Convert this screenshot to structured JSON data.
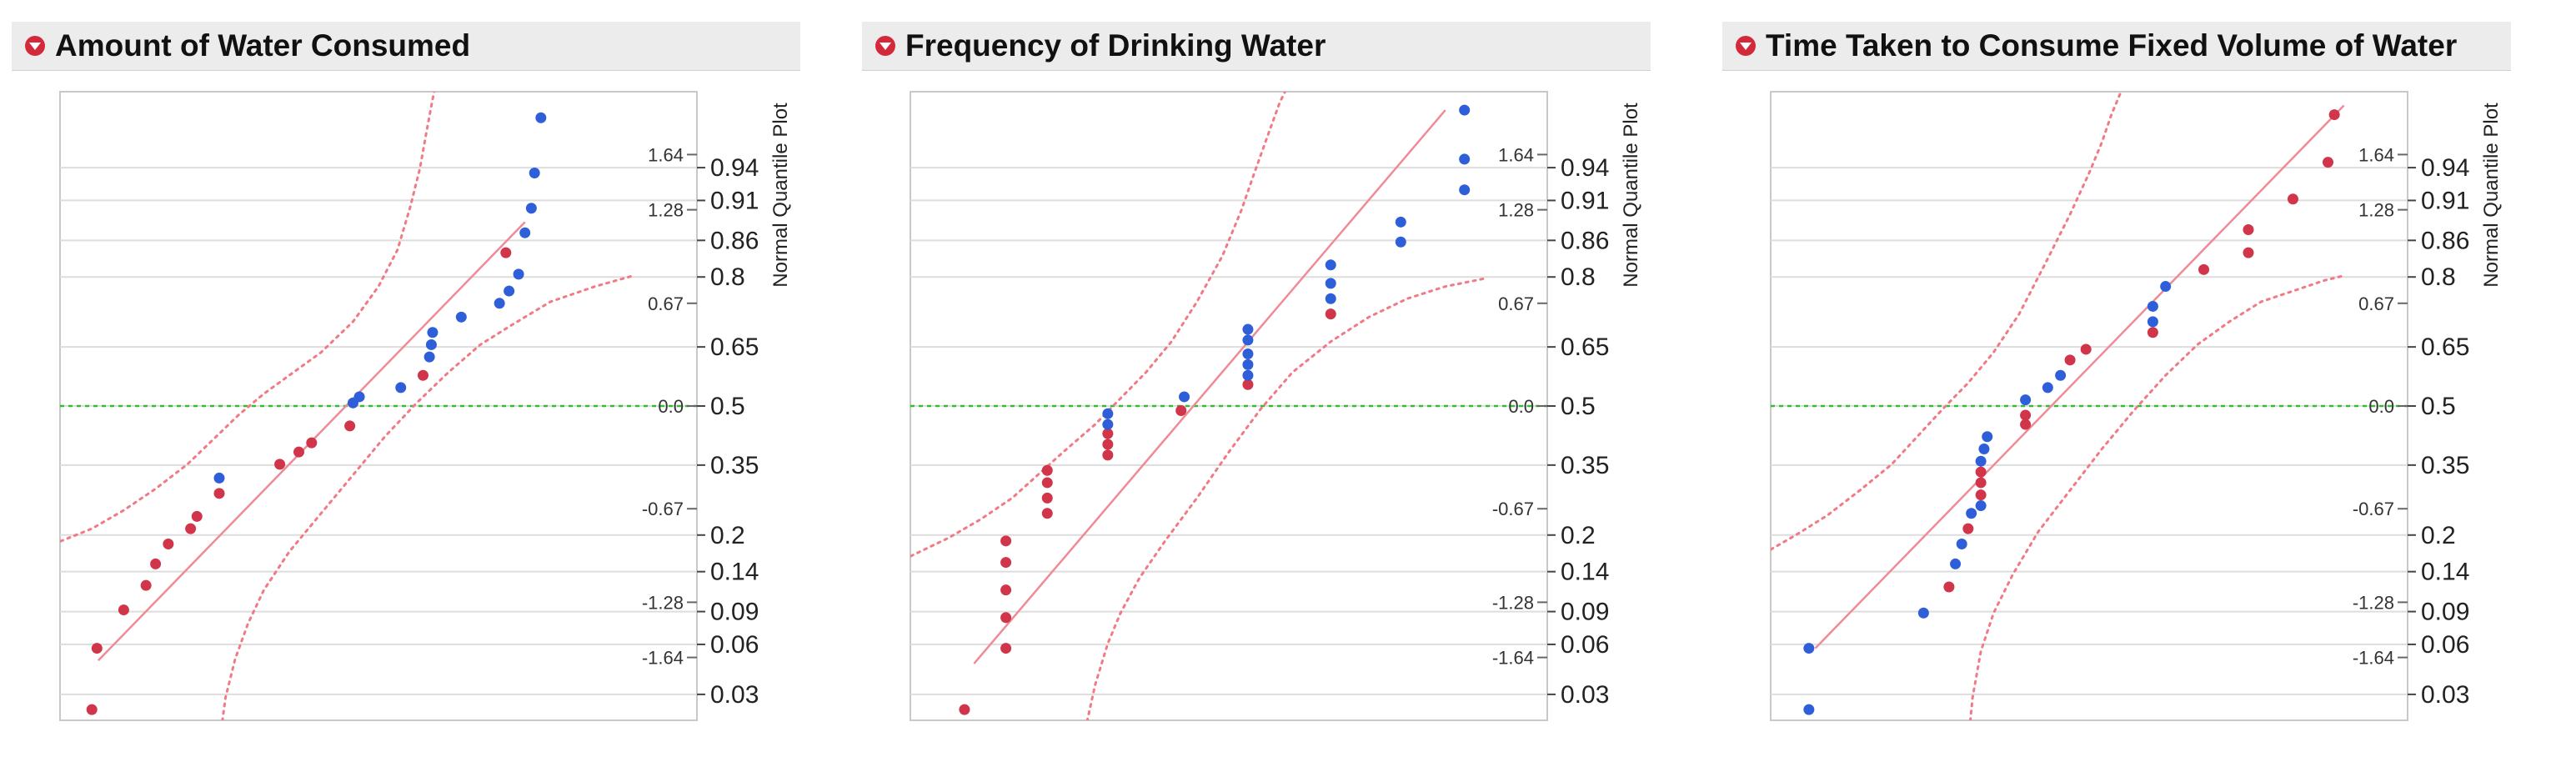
{
  "colors": {
    "series_a": "#d0354a",
    "series_b": "#2f5fd8",
    "fit_line": "#f08a96",
    "confidence": "#f07a86",
    "median_line": "#33bb33",
    "grid": "#dddddd",
    "disclosure": "#d32a3b"
  },
  "icons": {
    "disclosure": "disclosure-triangle-icon"
  },
  "chart_data": [
    {
      "type": "scatter",
      "title": "Amount of Water Consumed",
      "axis_label": "Normal Quantile Plot",
      "ylim": [
        -2.05,
        2.05
      ],
      "xlim": [
        0,
        100
      ],
      "quantile_ticks": [
        "1.64",
        "1.28",
        "0.67",
        "0.0",
        "-0.67",
        "-1.28",
        "-1.64"
      ],
      "quantile_tick_values": [
        1.64,
        1.28,
        0.67,
        0.0,
        -0.67,
        -1.28,
        -1.64
      ],
      "probability_ticks": [
        "0.94",
        "0.91",
        "0.86",
        "0.8",
        "0.65",
        "0.5",
        "0.35",
        "0.2",
        "0.14",
        "0.09",
        "0.06",
        "0.03"
      ],
      "probability_tick_values": [
        0.94,
        0.91,
        0.86,
        0.8,
        0.65,
        0.5,
        0.35,
        0.2,
        0.14,
        0.09,
        0.06,
        0.03
      ],
      "median_z": 0,
      "fit_line": {
        "x": [
          6,
          73
        ],
        "z": [
          -1.66,
          1.2
        ]
      },
      "confidence_band": {
        "upper": {
          "x": [
            -1,
            5,
            10,
            15,
            20,
            24,
            28,
            32,
            36,
            41,
            46,
            50,
            53,
            55,
            56.5,
            57.5,
            58.5,
            59.5
          ],
          "z": [
            -0.9,
            -0.8,
            -0.68,
            -0.54,
            -0.38,
            -0.22,
            -0.06,
            0.08,
            0.2,
            0.35,
            0.55,
            0.78,
            1.02,
            1.3,
            1.55,
            1.78,
            2.0,
            2.2
          ]
        },
        "lower": {
          "x": [
            25,
            26,
            27.5,
            29.5,
            32,
            36,
            41,
            46,
            51,
            56,
            61,
            66,
            71,
            77,
            84,
            90
          ],
          "z": [
            -2.2,
            -1.9,
            -1.65,
            -1.42,
            -1.2,
            -0.95,
            -0.7,
            -0.45,
            -0.2,
            0.02,
            0.22,
            0.4,
            0.53,
            0.68,
            0.78,
            0.85
          ]
        }
      },
      "series": [
        {
          "name": "red",
          "color_key": "series_a",
          "points": [
            [
              5,
              -1.98
            ],
            [
              5.8,
              -1.58
            ],
            [
              10,
              -1.33
            ],
            [
              13.5,
              -1.17
            ],
            [
              15,
              -1.03
            ],
            [
              17,
              -0.9
            ],
            [
              20.5,
              -0.8
            ],
            [
              21.5,
              -0.72
            ],
            [
              25,
              -0.57
            ],
            [
              34.5,
              -0.38
            ],
            [
              37.5,
              -0.3
            ],
            [
              39.5,
              -0.24
            ],
            [
              45.5,
              -0.13
            ],
            [
              57,
              0.2
            ],
            [
              70,
              1.0
            ]
          ]
        },
        {
          "name": "blue",
          "color_key": "series_b",
          "points": [
            [
              25,
              -0.47
            ],
            [
              46,
              0.02
            ],
            [
              47,
              0.06
            ],
            [
              53.5,
              0.12
            ],
            [
              58,
              0.32
            ],
            [
              58.3,
              0.4
            ],
            [
              58.5,
              0.48
            ],
            [
              63,
              0.58
            ],
            [
              69,
              0.67
            ],
            [
              70.5,
              0.75
            ],
            [
              72,
              0.86
            ],
            [
              73,
              1.13
            ],
            [
              74,
              1.29
            ],
            [
              74.5,
              1.52
            ],
            [
              75.5,
              1.88
            ]
          ]
        }
      ]
    },
    {
      "type": "scatter",
      "title": "Frequency of Drinking Water",
      "axis_label": "Normal Quantile Plot",
      "ylim": [
        -2.05,
        2.05
      ],
      "xlim": [
        0,
        100
      ],
      "quantile_ticks": [
        "1.64",
        "1.28",
        "0.67",
        "0.0",
        "-0.67",
        "-1.28",
        "-1.64"
      ],
      "quantile_tick_values": [
        1.64,
        1.28,
        0.67,
        0.0,
        -0.67,
        -1.28,
        -1.64
      ],
      "probability_ticks": [
        "0.94",
        "0.91",
        "0.86",
        "0.8",
        "0.65",
        "0.5",
        "0.35",
        "0.2",
        "0.14",
        "0.09",
        "0.06",
        "0.03"
      ],
      "probability_tick_values": [
        0.94,
        0.91,
        0.86,
        0.8,
        0.65,
        0.5,
        0.35,
        0.2,
        0.14,
        0.09,
        0.06,
        0.03
      ],
      "median_z": 0,
      "fit_line": {
        "x": [
          10,
          84
        ],
        "z": [
          -1.68,
          1.93
        ]
      },
      "confidence_band": {
        "upper": {
          "x": [
            -1,
            6,
            11,
            16,
            20,
            24,
            29,
            33,
            37,
            41,
            45,
            49,
            52,
            54,
            56,
            58,
            60,
            61.5
          ],
          "z": [
            -1.0,
            -0.86,
            -0.74,
            -0.6,
            -0.45,
            -0.3,
            -0.12,
            0.05,
            0.22,
            0.42,
            0.68,
            0.98,
            1.28,
            1.52,
            1.75,
            1.98,
            2.15,
            2.3
          ]
        },
        "lower": {
          "x": [
            27,
            29,
            31,
            33,
            36,
            40,
            45,
            50,
            55,
            60,
            66,
            72,
            78,
            84,
            90
          ],
          "z": [
            -2.2,
            -1.82,
            -1.55,
            -1.35,
            -1.12,
            -0.88,
            -0.6,
            -0.3,
            -0.02,
            0.22,
            0.42,
            0.58,
            0.7,
            0.78,
            0.83
          ]
        }
      },
      "series": [
        {
          "name": "red",
          "color_key": "series_a",
          "points": [
            [
              8.5,
              -1.98
            ],
            [
              15,
              -1.58
            ],
            [
              15,
              -1.38
            ],
            [
              15,
              -1.2
            ],
            [
              15,
              -1.02
            ],
            [
              15,
              -0.88
            ],
            [
              21.5,
              -0.7
            ],
            [
              21.5,
              -0.6
            ],
            [
              21.5,
              -0.5
            ],
            [
              21.5,
              -0.42
            ],
            [
              31,
              -0.32
            ],
            [
              31,
              -0.25
            ],
            [
              31,
              -0.18
            ],
            [
              42.5,
              -0.03
            ],
            [
              53,
              0.14
            ],
            [
              66,
              0.6
            ]
          ]
        },
        {
          "name": "blue",
          "color_key": "series_b",
          "points": [
            [
              31,
              -0.12
            ],
            [
              31,
              -0.05
            ],
            [
              43,
              0.06
            ],
            [
              53,
              0.2
            ],
            [
              53,
              0.27
            ],
            [
              53,
              0.34
            ],
            [
              53,
              0.43
            ],
            [
              53,
              0.5
            ],
            [
              66,
              0.7
            ],
            [
              66,
              0.8
            ],
            [
              66,
              0.92
            ],
            [
              77,
              1.07
            ],
            [
              77,
              1.2
            ],
            [
              87,
              1.41
            ],
            [
              87,
              1.61
            ],
            [
              87,
              1.93
            ]
          ]
        }
      ]
    },
    {
      "type": "scatter",
      "title": "Time Taken to Consume Fixed Volume of Water",
      "axis_label": "Normal Quantile Plot",
      "ylim": [
        -2.05,
        2.05
      ],
      "xlim": [
        0,
        100
      ],
      "quantile_ticks": [
        "1.64",
        "1.28",
        "0.67",
        "0.0",
        "-0.67",
        "-1.28",
        "-1.64"
      ],
      "quantile_tick_values": [
        1.64,
        1.28,
        0.67,
        0.0,
        -0.67,
        -1.28,
        -1.64
      ],
      "probability_ticks": [
        "0.94",
        "0.91",
        "0.86",
        "0.8",
        "0.65",
        "0.5",
        "0.35",
        "0.2",
        "0.14",
        "0.09",
        "0.06",
        "0.03"
      ],
      "probability_tick_values": [
        0.94,
        0.91,
        0.86,
        0.8,
        0.65,
        0.5,
        0.35,
        0.2,
        0.14,
        0.09,
        0.06,
        0.03
      ],
      "median_z": 0,
      "fit_line": {
        "x": [
          7,
          90
        ],
        "z": [
          -1.58,
          1.96
        ]
      },
      "confidence_band": {
        "upper": {
          "x": [
            -1,
            4,
            9,
            14,
            19,
            23,
            27,
            31,
            35,
            39,
            43,
            47,
            50,
            52,
            53.5,
            55,
            56,
            57
          ],
          "z": [
            -0.96,
            -0.84,
            -0.71,
            -0.55,
            -0.38,
            -0.2,
            -0.02,
            0.15,
            0.35,
            0.6,
            0.92,
            1.25,
            1.52,
            1.72,
            1.9,
            2.05,
            2.15,
            2.25
          ]
        },
        "lower": {
          "x": [
            31,
            31.7,
            33,
            35,
            38,
            42,
            47,
            52,
            57,
            62,
            67,
            72,
            77,
            82,
            87,
            90
          ],
          "z": [
            -2.2,
            -1.9,
            -1.6,
            -1.35,
            -1.1,
            -0.82,
            -0.55,
            -0.28,
            -0.03,
            0.2,
            0.4,
            0.55,
            0.68,
            0.75,
            0.82,
            0.85
          ]
        }
      },
      "series": [
        {
          "name": "red",
          "color_key": "series_a",
          "points": [
            [
              28,
              -1.18
            ],
            [
              31,
              -0.8
            ],
            [
              33,
              -0.58
            ],
            [
              33,
              -0.5
            ],
            [
              33,
              -0.43
            ],
            [
              40,
              -0.12
            ],
            [
              40,
              -0.06
            ],
            [
              47,
              0.3
            ],
            [
              49.5,
              0.37
            ],
            [
              60,
              0.48
            ],
            [
              68,
              0.89
            ],
            [
              75,
              1.0
            ],
            [
              75,
              1.15
            ],
            [
              82,
              1.35
            ],
            [
              87.5,
              1.59
            ],
            [
              88.5,
              1.9
            ]
          ]
        },
        {
          "name": "blue",
          "color_key": "series_b",
          "points": [
            [
              6,
              -1.98
            ],
            [
              6,
              -1.58
            ],
            [
              24,
              -1.35
            ],
            [
              29,
              -1.03
            ],
            [
              30,
              -0.9
            ],
            [
              31.5,
              -0.7
            ],
            [
              33,
              -0.65
            ],
            [
              33,
              -0.36
            ],
            [
              33.5,
              -0.28
            ],
            [
              34,
              -0.2
            ],
            [
              40,
              0.04
            ],
            [
              43.5,
              0.12
            ],
            [
              45.5,
              0.2
            ],
            [
              60,
              0.55
            ],
            [
              60,
              0.65
            ],
            [
              62,
              0.78
            ]
          ]
        }
      ]
    }
  ]
}
